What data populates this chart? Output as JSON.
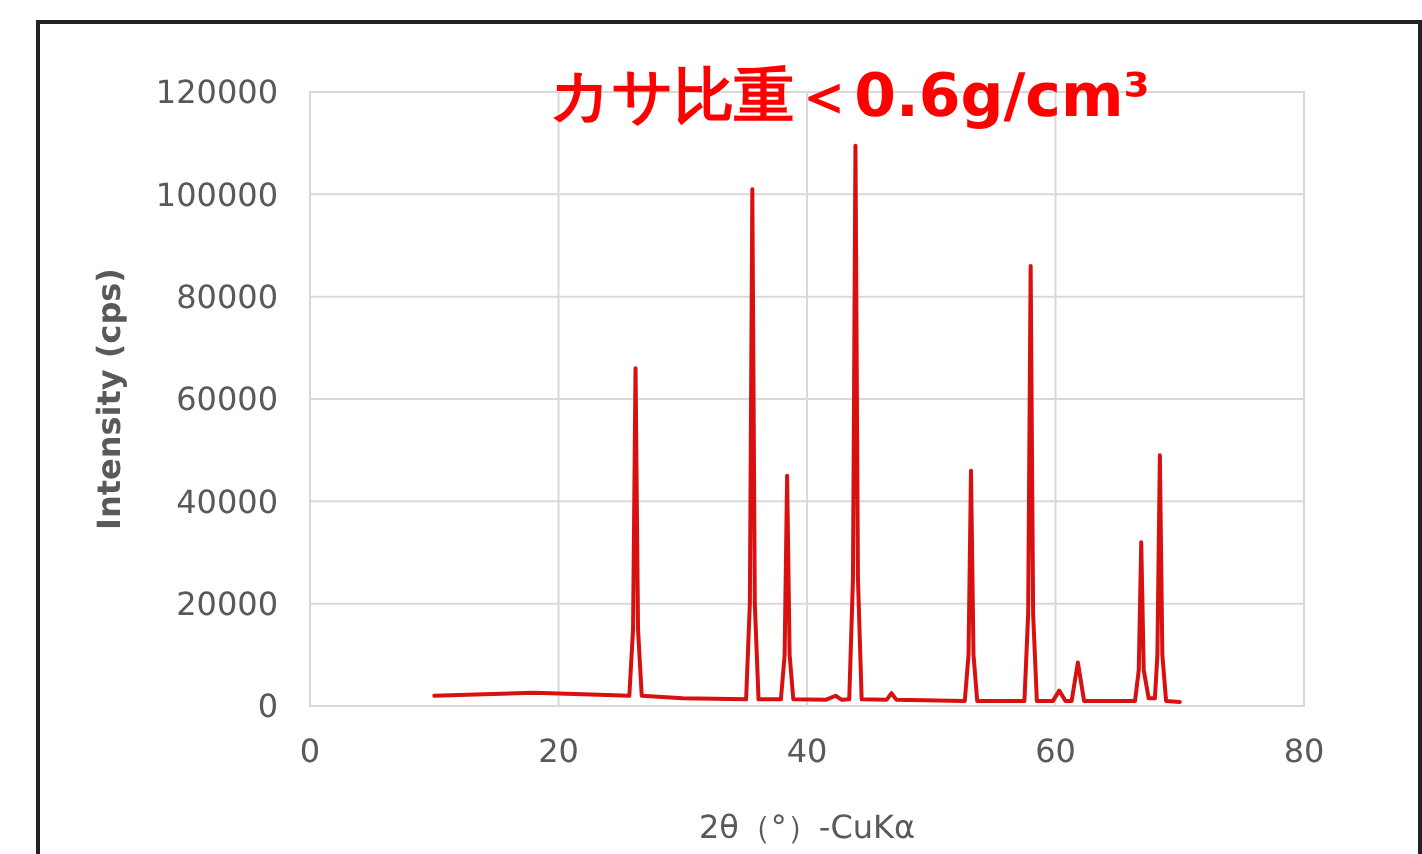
{
  "chart_data": {
    "type": "line",
    "title": "カサ比重＜0.6g/cm³",
    "xlabel": "2θ（°）-CuKα",
    "ylabel": "Intensity (cps)",
    "xlim": [
      0,
      80
    ],
    "xticks": [
      0,
      20,
      40,
      60,
      80
    ],
    "ylim": [
      0,
      120000
    ],
    "yticks": [
      0,
      20000,
      40000,
      60000,
      80000,
      100000,
      120000
    ],
    "grid": true,
    "marker": "none",
    "line_style": "solid",
    "series": [
      {
        "color": "#d81010",
        "x": [
          10,
          14,
          18,
          22,
          25.7,
          26.0,
          26.2,
          26.4,
          26.7,
          30,
          35.1,
          35.4,
          35.6,
          35.8,
          36.1,
          37.9,
          38.2,
          38.4,
          38.6,
          38.9,
          41.5,
          42.3,
          42.8,
          43.4,
          43.7,
          43.9,
          44.1,
          44.4,
          46.4,
          46.8,
          47.2,
          52.7,
          53.0,
          53.2,
          53.4,
          53.7,
          57.5,
          57.8,
          58.0,
          58.2,
          58.5,
          59.8,
          60.3,
          60.8,
          61.3,
          61.8,
          62.3,
          66.4,
          66.7,
          66.9,
          67.1,
          67.5,
          68.0,
          68.2,
          68.4,
          68.6,
          68.9,
          70
        ],
        "values": [
          2000,
          2300,
          2600,
          2300,
          2000,
          15000,
          66000,
          15000,
          2000,
          1500,
          1300,
          20000,
          101000,
          20000,
          1300,
          1300,
          10000,
          45000,
          10000,
          1300,
          1200,
          2000,
          1200,
          1300,
          25000,
          109500,
          25000,
          1300,
          1200,
          2500,
          1200,
          1000,
          10000,
          46000,
          10000,
          1000,
          1000,
          18000,
          86000,
          18000,
          1000,
          1000,
          3000,
          1000,
          1000,
          8500,
          1000,
          1000,
          7000,
          32000,
          7000,
          1500,
          1500,
          10000,
          49000,
          10000,
          1000,
          800
        ]
      }
    ]
  }
}
